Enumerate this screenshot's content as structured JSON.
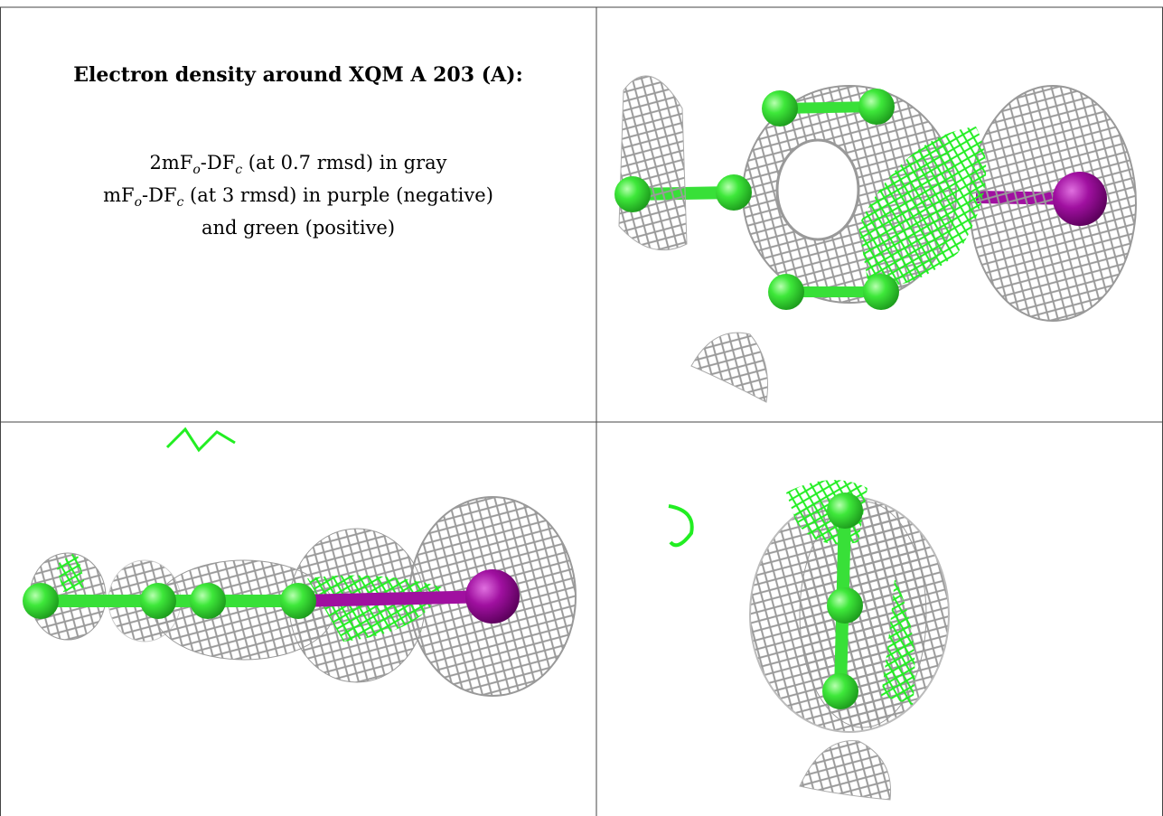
{
  "caption": {
    "title": "Electron density around XQM A 203 (A):",
    "lines": [
      {
        "parts": [
          "2mF",
          "o",
          "-DF",
          "c",
          " (at 0.7 rmsd) in gray"
        ]
      },
      {
        "parts": [
          "mF",
          "o",
          "-DF",
          "c",
          " (at 3 rmsd) in purple (negative)"
        ]
      },
      {
        "parts": [
          "and green (positive)"
        ]
      }
    ]
  }
}
